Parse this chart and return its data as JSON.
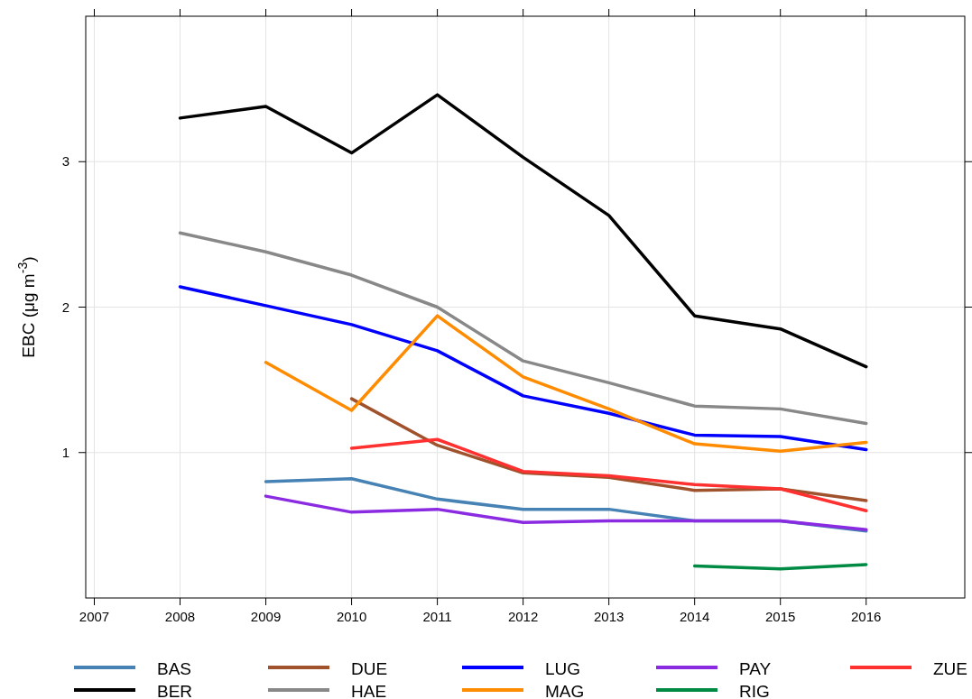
{
  "chart_data": {
    "type": "line",
    "ylabel": "EBC (μg m$^{-3}$)",
    "xlim": [
      2006.9,
      2017.15
    ],
    "xticks": [
      2007,
      2008,
      2009,
      2010,
      2011,
      2012,
      2013,
      2014,
      2015,
      2016
    ],
    "ylim": [
      0,
      4
    ],
    "yticks": [
      1,
      2,
      3
    ],
    "grid": true,
    "legend": "bottom",
    "series": [
      {
        "name": "BAS",
        "color": "#4682b4",
        "x": [
          2009,
          2010,
          2011,
          2012,
          2013,
          2014,
          2015,
          2016
        ],
        "values": [
          0.8,
          0.82,
          0.68,
          0.61,
          0.61,
          0.53,
          0.53,
          0.46
        ]
      },
      {
        "name": "BER",
        "color": "#000000",
        "x": [
          2008,
          2009,
          2010,
          2011,
          2012,
          2013,
          2014,
          2015,
          2016
        ],
        "values": [
          3.3,
          3.38,
          3.06,
          3.46,
          3.03,
          2.63,
          1.94,
          1.85,
          1.59
        ]
      },
      {
        "name": "DUE",
        "color": "#a0522d",
        "x": [
          2010,
          2011,
          2012,
          2013,
          2014,
          2015,
          2016
        ],
        "values": [
          1.37,
          1.05,
          0.86,
          0.83,
          0.74,
          0.75,
          0.67
        ]
      },
      {
        "name": "HAE",
        "color": "#888888",
        "x": [
          2008,
          2009,
          2010,
          2011,
          2012,
          2013,
          2014,
          2015,
          2016
        ],
        "values": [
          2.51,
          2.38,
          2.22,
          2.0,
          1.63,
          1.48,
          1.32,
          1.3,
          1.2
        ]
      },
      {
        "name": "LUG",
        "color": "#0000ff",
        "x": [
          2008,
          2009,
          2010,
          2011,
          2012,
          2013,
          2014,
          2015,
          2016
        ],
        "values": [
          2.14,
          2.01,
          1.88,
          1.7,
          1.39,
          1.27,
          1.12,
          1.11,
          1.02
        ]
      },
      {
        "name": "MAG",
        "color": "#ff8c00",
        "x": [
          2009,
          2010,
          2011,
          2012,
          2013,
          2014,
          2015,
          2016
        ],
        "values": [
          1.62,
          1.29,
          1.94,
          1.52,
          1.3,
          1.06,
          1.01,
          1.07
        ]
      },
      {
        "name": "PAY",
        "color": "#8a2be2",
        "x": [
          2009,
          2010,
          2011,
          2012,
          2013,
          2014,
          2015,
          2016
        ],
        "values": [
          0.7,
          0.59,
          0.61,
          0.52,
          0.53,
          0.53,
          0.53,
          0.47
        ]
      },
      {
        "name": "RIG",
        "color": "#008b45",
        "x": [
          2014,
          2015,
          2016
        ],
        "values": [
          0.22,
          0.2,
          0.23
        ]
      },
      {
        "name": "ZUE",
        "color": "#ff3030",
        "x": [
          2010,
          2011,
          2012,
          2013,
          2014,
          2015,
          2016
        ],
        "values": [
          1.03,
          1.09,
          0.87,
          0.84,
          0.78,
          0.75,
          0.6
        ]
      }
    ]
  }
}
